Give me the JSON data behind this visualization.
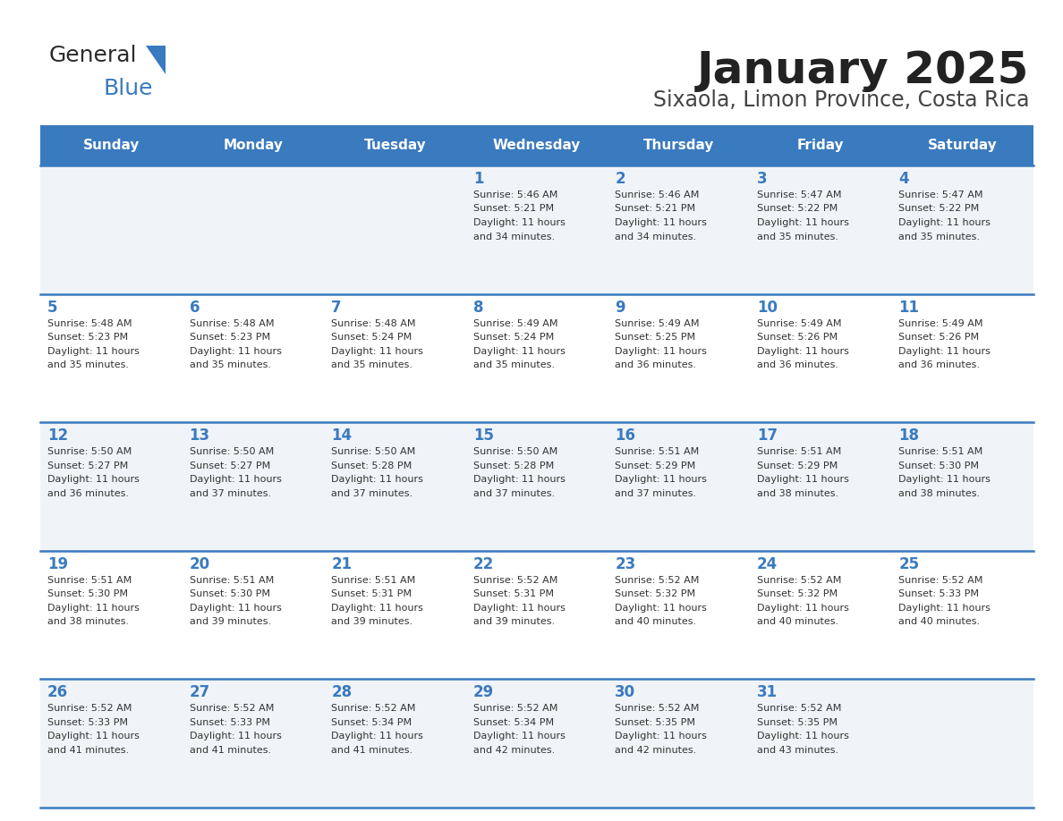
{
  "title": "January 2025",
  "subtitle": "Sixaola, Limon Province, Costa Rica",
  "header_color": "#3a7abf",
  "header_text_color": "#ffffff",
  "cell_bg_even": "#f0f4f8",
  "cell_bg_odd": "#ffffff",
  "day_number_color": "#3a7abf",
  "text_color": "#333333",
  "border_color": "#3a7abf",
  "title_color": "#222222",
  "subtitle_color": "#444444",
  "days_of_week": [
    "Sunday",
    "Monday",
    "Tuesday",
    "Wednesday",
    "Thursday",
    "Friday",
    "Saturday"
  ],
  "weeks": [
    [
      {
        "day": "",
        "sunrise": "",
        "sunset": "",
        "daylight": ""
      },
      {
        "day": "",
        "sunrise": "",
        "sunset": "",
        "daylight": ""
      },
      {
        "day": "",
        "sunrise": "",
        "sunset": "",
        "daylight": ""
      },
      {
        "day": "1",
        "sunrise": "5:46 AM",
        "sunset": "5:21 PM",
        "daylight": "11 hours and 34 minutes."
      },
      {
        "day": "2",
        "sunrise": "5:46 AM",
        "sunset": "5:21 PM",
        "daylight": "11 hours and 34 minutes."
      },
      {
        "day": "3",
        "sunrise": "5:47 AM",
        "sunset": "5:22 PM",
        "daylight": "11 hours and 35 minutes."
      },
      {
        "day": "4",
        "sunrise": "5:47 AM",
        "sunset": "5:22 PM",
        "daylight": "11 hours and 35 minutes."
      }
    ],
    [
      {
        "day": "5",
        "sunrise": "5:48 AM",
        "sunset": "5:23 PM",
        "daylight": "11 hours and 35 minutes."
      },
      {
        "day": "6",
        "sunrise": "5:48 AM",
        "sunset": "5:23 PM",
        "daylight": "11 hours and 35 minutes."
      },
      {
        "day": "7",
        "sunrise": "5:48 AM",
        "sunset": "5:24 PM",
        "daylight": "11 hours and 35 minutes."
      },
      {
        "day": "8",
        "sunrise": "5:49 AM",
        "sunset": "5:24 PM",
        "daylight": "11 hours and 35 minutes."
      },
      {
        "day": "9",
        "sunrise": "5:49 AM",
        "sunset": "5:25 PM",
        "daylight": "11 hours and 36 minutes."
      },
      {
        "day": "10",
        "sunrise": "5:49 AM",
        "sunset": "5:26 PM",
        "daylight": "11 hours and 36 minutes."
      },
      {
        "day": "11",
        "sunrise": "5:49 AM",
        "sunset": "5:26 PM",
        "daylight": "11 hours and 36 minutes."
      }
    ],
    [
      {
        "day": "12",
        "sunrise": "5:50 AM",
        "sunset": "5:27 PM",
        "daylight": "11 hours and 36 minutes."
      },
      {
        "day": "13",
        "sunrise": "5:50 AM",
        "sunset": "5:27 PM",
        "daylight": "11 hours and 37 minutes."
      },
      {
        "day": "14",
        "sunrise": "5:50 AM",
        "sunset": "5:28 PM",
        "daylight": "11 hours and 37 minutes."
      },
      {
        "day": "15",
        "sunrise": "5:50 AM",
        "sunset": "5:28 PM",
        "daylight": "11 hours and 37 minutes."
      },
      {
        "day": "16",
        "sunrise": "5:51 AM",
        "sunset": "5:29 PM",
        "daylight": "11 hours and 37 minutes."
      },
      {
        "day": "17",
        "sunrise": "5:51 AM",
        "sunset": "5:29 PM",
        "daylight": "11 hours and 38 minutes."
      },
      {
        "day": "18",
        "sunrise": "5:51 AM",
        "sunset": "5:30 PM",
        "daylight": "11 hours and 38 minutes."
      }
    ],
    [
      {
        "day": "19",
        "sunrise": "5:51 AM",
        "sunset": "5:30 PM",
        "daylight": "11 hours and 38 minutes."
      },
      {
        "day": "20",
        "sunrise": "5:51 AM",
        "sunset": "5:30 PM",
        "daylight": "11 hours and 39 minutes."
      },
      {
        "day": "21",
        "sunrise": "5:51 AM",
        "sunset": "5:31 PM",
        "daylight": "11 hours and 39 minutes."
      },
      {
        "day": "22",
        "sunrise": "5:52 AM",
        "sunset": "5:31 PM",
        "daylight": "11 hours and 39 minutes."
      },
      {
        "day": "23",
        "sunrise": "5:52 AM",
        "sunset": "5:32 PM",
        "daylight": "11 hours and 40 minutes."
      },
      {
        "day": "24",
        "sunrise": "5:52 AM",
        "sunset": "5:32 PM",
        "daylight": "11 hours and 40 minutes."
      },
      {
        "day": "25",
        "sunrise": "5:52 AM",
        "sunset": "5:33 PM",
        "daylight": "11 hours and 40 minutes."
      }
    ],
    [
      {
        "day": "26",
        "sunrise": "5:52 AM",
        "sunset": "5:33 PM",
        "daylight": "11 hours and 41 minutes."
      },
      {
        "day": "27",
        "sunrise": "5:52 AM",
        "sunset": "5:33 PM",
        "daylight": "11 hours and 41 minutes."
      },
      {
        "day": "28",
        "sunrise": "5:52 AM",
        "sunset": "5:34 PM",
        "daylight": "11 hours and 41 minutes."
      },
      {
        "day": "29",
        "sunrise": "5:52 AM",
        "sunset": "5:34 PM",
        "daylight": "11 hours and 42 minutes."
      },
      {
        "day": "30",
        "sunrise": "5:52 AM",
        "sunset": "5:35 PM",
        "daylight": "11 hours and 42 minutes."
      },
      {
        "day": "31",
        "sunrise": "5:52 AM",
        "sunset": "5:35 PM",
        "daylight": "11 hours and 43 minutes."
      },
      {
        "day": "",
        "sunrise": "",
        "sunset": "",
        "daylight": ""
      }
    ]
  ]
}
